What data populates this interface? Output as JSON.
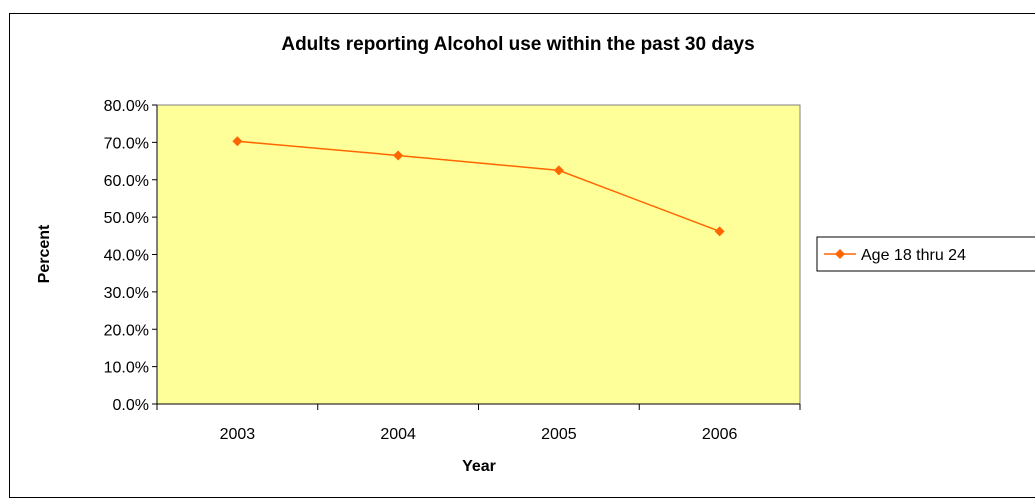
{
  "chart_data": {
    "type": "line",
    "title": "Adults reporting Alcohol use within the past 30 days",
    "xlabel": "Year",
    "ylabel": "Percent",
    "categories": [
      "2003",
      "2004",
      "2005",
      "2006"
    ],
    "ylim": [
      0,
      80
    ],
    "yticks": [
      "0.0%",
      "10.0%",
      "20.0%",
      "30.0%",
      "40.0%",
      "50.0%",
      "60.0%",
      "70.0%",
      "80.0%"
    ],
    "grid": false,
    "legend_position": "right",
    "colors": {
      "plot_background": "#ffff99",
      "series": "#ff6600"
    },
    "series": [
      {
        "name": "Age 18 thru 24",
        "values": [
          70.3,
          66.5,
          62.5,
          46.2
        ]
      }
    ]
  }
}
